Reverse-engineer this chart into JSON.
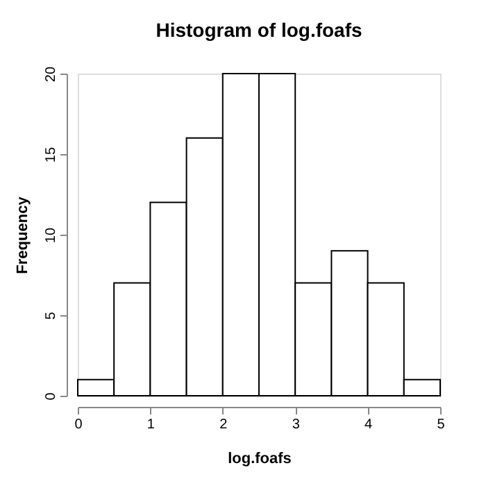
{
  "chart_data": {
    "type": "histogram",
    "title": "Histogram of log.foafs",
    "xlabel": "log.foafs",
    "ylabel": "Frequency",
    "bins": [
      0,
      0.5,
      1,
      1.5,
      2,
      2.5,
      3,
      3.5,
      4,
      4.5,
      5
    ],
    "values": [
      1,
      7,
      12,
      16,
      20,
      20,
      7,
      9,
      7,
      1
    ],
    "color": "#ffffff",
    "xlim": [
      0,
      5
    ],
    "xticks": [
      0,
      1,
      2,
      3,
      4,
      5
    ],
    "ylim": [
      0,
      20
    ],
    "yticks": [
      0,
      5,
      10,
      15,
      20
    ],
    "grid": false
  }
}
